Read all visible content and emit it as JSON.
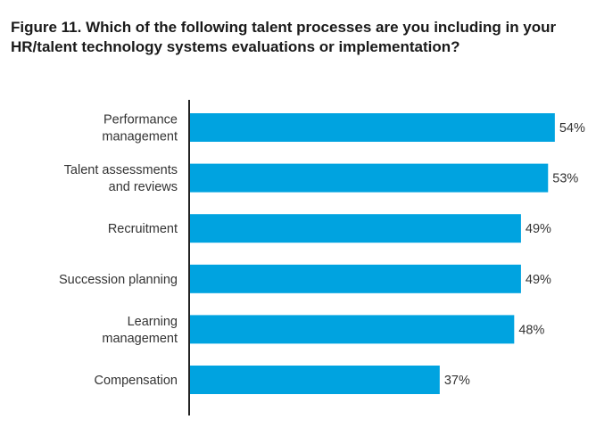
{
  "chart_data": {
    "type": "bar",
    "orientation": "horizontal",
    "title": "Figure 11. Which of the following talent processes are you including in your HR/talent technology systems evaluations or implementation?",
    "categories": [
      [
        "Performance",
        "management"
      ],
      [
        "Talent assessments",
        "and reviews"
      ],
      [
        "Recruitment"
      ],
      [
        "Succession planning"
      ],
      [
        "Learning",
        "management"
      ],
      [
        "Compensation"
      ]
    ],
    "values": [
      54,
      53,
      49,
      49,
      48,
      37
    ],
    "value_labels": [
      "54%",
      "53%",
      "49%",
      "49%",
      "48%",
      "37%"
    ],
    "unit": "%",
    "xlim": [
      0,
      100
    ],
    "grid": false,
    "legend": "none",
    "bar_color": "#00a3e0",
    "axis_color": "#222222"
  }
}
